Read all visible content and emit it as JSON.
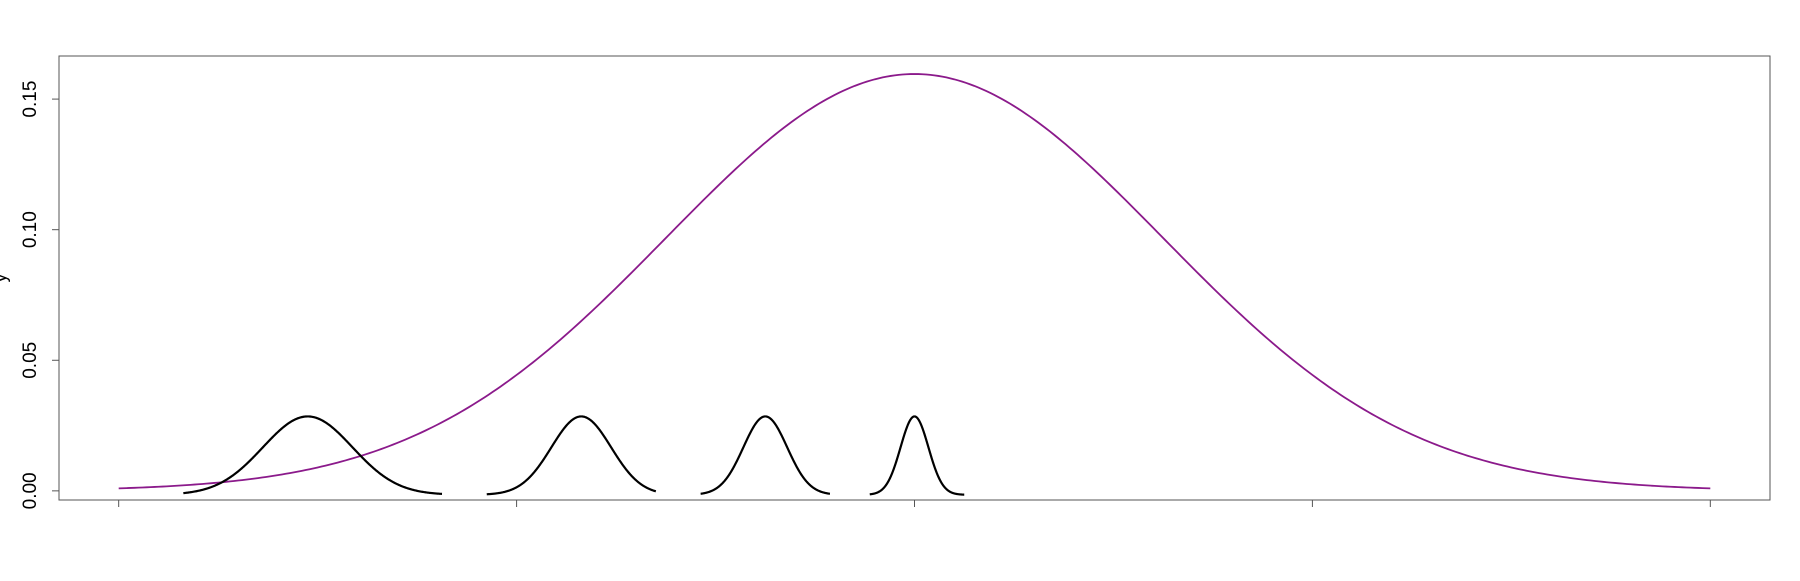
{
  "chart_data": {
    "type": "line",
    "title": "",
    "xlabel": "",
    "ylabel": "y",
    "xlim": [
      -8.6,
      8.6
    ],
    "ylim": [
      -0.0035,
      0.1665
    ],
    "grid": false,
    "legend": "none",
    "y_ticks": [
      {
        "value": 0.0,
        "label": "0.00"
      },
      {
        "value": 0.05,
        "label": "0.05"
      },
      {
        "value": 0.1,
        "label": "0.10"
      },
      {
        "value": 0.15,
        "label": "0.15"
      }
    ],
    "x_ticks": [
      -8,
      -4,
      0,
      4,
      8
    ],
    "series": [
      {
        "color": "#8B1A8B",
        "kind": "normal-density",
        "mean": 0,
        "sd": 2.5,
        "peak": 0.1596,
        "baseline": 0.0,
        "x_from": -8,
        "x_to": 8
      },
      {
        "color": "#000000",
        "kind": "bump",
        "mean": -6.1,
        "sd": 0.45,
        "peak": 0.0285,
        "baseline": -0.0015,
        "x_from": -7.35,
        "x_to": -4.75
      },
      {
        "color": "#000000",
        "kind": "bump",
        "mean": -3.35,
        "sd": 0.3,
        "peak": 0.0285,
        "baseline": -0.0015,
        "x_from": -4.3,
        "x_to": -2.6
      },
      {
        "color": "#000000",
        "kind": "bump",
        "mean": -1.5,
        "sd": 0.22,
        "peak": 0.0285,
        "baseline": -0.0015,
        "x_from": -2.15,
        "x_to": -0.85
      },
      {
        "color": "#000000",
        "kind": "bump",
        "mean": 0.0,
        "sd": 0.14,
        "peak": 0.0285,
        "baseline": -0.0015,
        "x_from": -0.45,
        "x_to": 0.5
      }
    ]
  }
}
